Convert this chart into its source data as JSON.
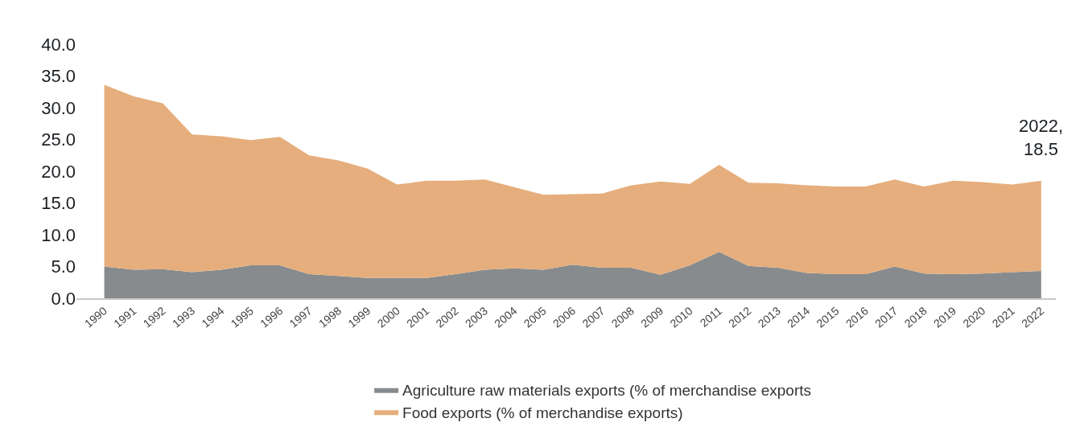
{
  "chart_data": {
    "type": "area",
    "stacked": true,
    "categories": [
      "1990",
      "1991",
      "1992",
      "1993",
      "1994",
      "1995",
      "1996",
      "1997",
      "1998",
      "1999",
      "2000",
      "2001",
      "2002",
      "2003",
      "2004",
      "2005",
      "2006",
      "2007",
      "2008",
      "2009",
      "2010",
      "2011",
      "2012",
      "2013",
      "2014",
      "2015",
      "2016",
      "2017",
      "2018",
      "2019",
      "2020",
      "2021",
      "2022"
    ],
    "series": [
      {
        "name": "Agriculture raw materials exports (% of merchandise exports",
        "color": "#878b8e",
        "values": [
          5.0,
          4.5,
          4.6,
          4.1,
          4.5,
          5.2,
          5.2,
          3.8,
          3.5,
          3.2,
          3.2,
          3.2,
          3.8,
          4.5,
          4.7,
          4.5,
          5.3,
          4.8,
          4.8,
          3.7,
          5.2,
          7.3,
          5.1,
          4.8,
          4.0,
          3.8,
          3.8,
          5.0,
          3.9,
          3.8,
          3.9,
          4.1,
          4.3
        ]
      },
      {
        "name": "Food exports (% of merchandise exports)",
        "color": "#e5ae7c",
        "values": [
          28.6,
          27.3,
          26.1,
          21.7,
          21.0,
          19.7,
          20.2,
          18.7,
          18.2,
          17.2,
          14.7,
          15.3,
          14.7,
          14.2,
          12.8,
          11.8,
          11.1,
          11.7,
          13.0,
          14.7,
          12.8,
          13.7,
          13.1,
          13.3,
          13.8,
          13.8,
          13.8,
          13.7,
          13.7,
          14.7,
          14.4,
          13.8,
          14.2
        ]
      }
    ],
    "ylim": [
      0,
      40
    ],
    "yticks": [
      {
        "value": 0,
        "label": "0.0"
      },
      {
        "value": 5,
        "label": "5.0"
      },
      {
        "value": 10,
        "label": "10.0"
      },
      {
        "value": 15,
        "label": "15.0"
      },
      {
        "value": 20,
        "label": "20.0"
      },
      {
        "value": 25,
        "label": "25.0"
      },
      {
        "value": 30,
        "label": "30.0"
      },
      {
        "value": 35,
        "label": "35.0"
      },
      {
        "value": 40,
        "label": "40.0"
      }
    ],
    "legend": "bottom",
    "annotations": [
      {
        "text": "2022,\n18.5",
        "x": "2022",
        "y": 18.5
      }
    ]
  }
}
